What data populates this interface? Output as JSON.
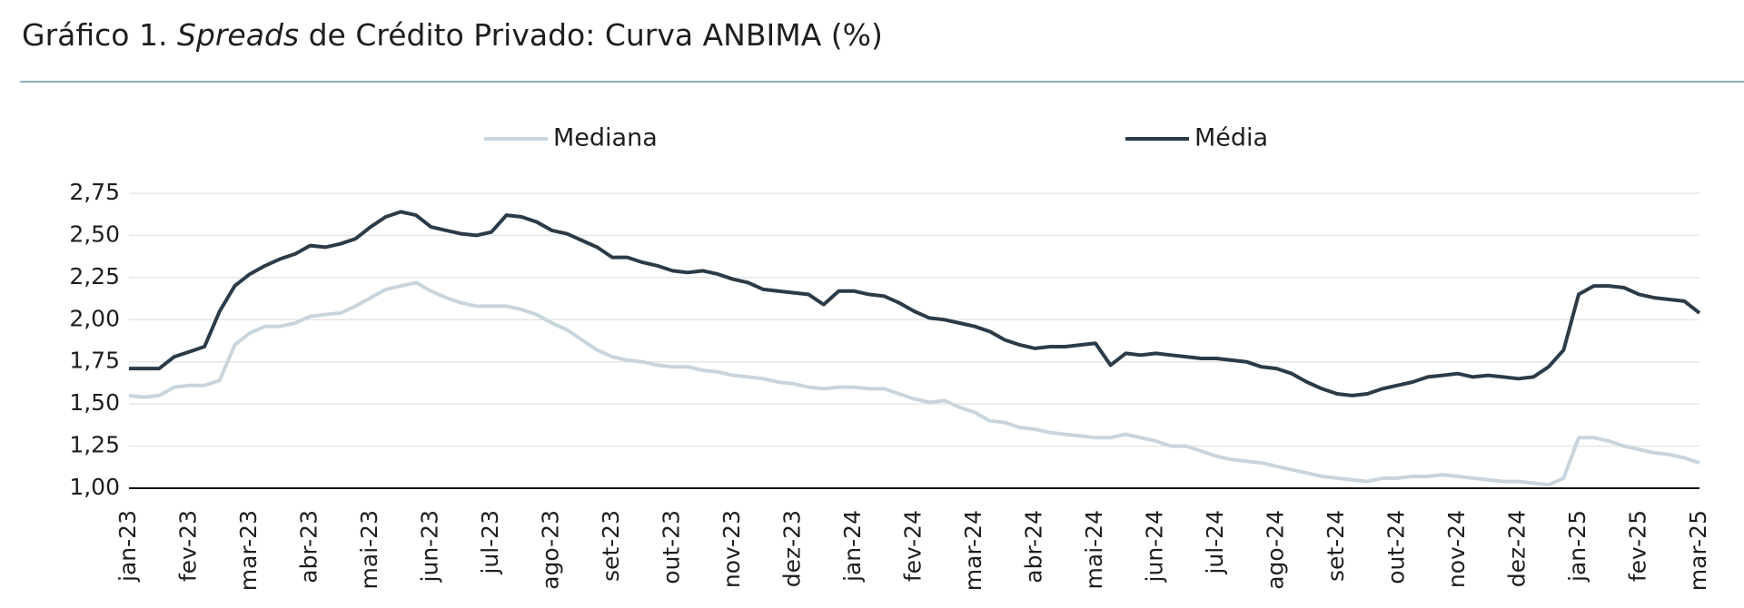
{
  "chart_data": {
    "type": "line",
    "title": [
      "Gráfico 1.",
      "Spreads",
      "de Crédito Privado: Curva ANBIMA (%)"
    ],
    "categories": [
      "jan-23",
      null,
      null,
      null,
      "fev-23",
      null,
      null,
      null,
      "mar-23",
      null,
      null,
      null,
      "abr-23",
      null,
      null,
      null,
      "mai-23",
      null,
      null,
      null,
      "jun-23",
      null,
      null,
      null,
      "jul-23",
      null,
      null,
      null,
      "ago-23",
      null,
      null,
      null,
      "set-23",
      null,
      null,
      null,
      "out-23",
      null,
      null,
      null,
      "nov-23",
      null,
      null,
      null,
      "dez-23",
      null,
      null,
      null,
      "jan-24",
      null,
      null,
      null,
      "fev-24",
      null,
      null,
      null,
      "mar-24",
      null,
      null,
      null,
      "abr-24",
      null,
      null,
      null,
      "mai-24",
      null,
      null,
      null,
      "jun-24",
      null,
      null,
      null,
      "jul-24",
      null,
      null,
      null,
      "ago-24",
      null,
      null,
      null,
      "set-24",
      null,
      null,
      null,
      "out-24",
      null,
      null,
      null,
      "nov-24",
      null,
      null,
      null,
      "dez-24",
      null,
      null,
      null,
      "jan-25",
      null,
      null,
      null,
      "fev-25",
      null,
      null,
      null,
      "mar-25"
    ],
    "series": [
      {
        "name": "Mediana",
        "color": "#c8d5de",
        "values": [
          1.55,
          1.54,
          1.55,
          1.6,
          1.61,
          1.61,
          1.64,
          1.85,
          1.92,
          1.96,
          1.96,
          1.98,
          2.02,
          2.03,
          2.04,
          2.08,
          2.13,
          2.18,
          2.2,
          2.22,
          2.17,
          2.13,
          2.1,
          2.08,
          2.08,
          2.08,
          2.06,
          2.03,
          1.98,
          1.94,
          1.88,
          1.82,
          1.78,
          1.76,
          1.75,
          1.73,
          1.72,
          1.72,
          1.7,
          1.69,
          1.67,
          1.66,
          1.65,
          1.63,
          1.62,
          1.6,
          1.59,
          1.6,
          1.6,
          1.59,
          1.59,
          1.56,
          1.53,
          1.51,
          1.52,
          1.48,
          1.45,
          1.4,
          1.39,
          1.36,
          1.35,
          1.33,
          1.32,
          1.31,
          1.3,
          1.3,
          1.32,
          1.3,
          1.28,
          1.25,
          1.25,
          1.22,
          1.19,
          1.17,
          1.16,
          1.15,
          1.13,
          1.11,
          1.09,
          1.07,
          1.06,
          1.05,
          1.04,
          1.06,
          1.06,
          1.07,
          1.07,
          1.08,
          1.07,
          1.06,
          1.05,
          1.04,
          1.04,
          1.03,
          1.02,
          1.06,
          1.3,
          1.3,
          1.28,
          1.25,
          1.23,
          1.21,
          1.2,
          1.18,
          1.15
        ]
      },
      {
        "name": "Média",
        "color": "#2b3b48",
        "values": [
          1.71,
          1.71,
          1.71,
          1.78,
          1.81,
          1.84,
          2.05,
          2.2,
          2.27,
          2.32,
          2.36,
          2.39,
          2.44,
          2.43,
          2.45,
          2.48,
          2.55,
          2.61,
          2.64,
          2.62,
          2.55,
          2.53,
          2.51,
          2.5,
          2.52,
          2.62,
          2.61,
          2.58,
          2.53,
          2.51,
          2.47,
          2.43,
          2.37,
          2.37,
          2.34,
          2.32,
          2.29,
          2.28,
          2.29,
          2.27,
          2.24,
          2.22,
          2.18,
          2.17,
          2.16,
          2.15,
          2.09,
          2.17,
          2.17,
          2.15,
          2.14,
          2.1,
          2.05,
          2.01,
          2.0,
          1.98,
          1.96,
          1.93,
          1.88,
          1.85,
          1.83,
          1.84,
          1.84,
          1.85,
          1.86,
          1.73,
          1.8,
          1.79,
          1.8,
          1.79,
          1.78,
          1.77,
          1.77,
          1.76,
          1.75,
          1.72,
          1.71,
          1.68,
          1.63,
          1.59,
          1.56,
          1.55,
          1.56,
          1.59,
          1.61,
          1.63,
          1.66,
          1.67,
          1.68,
          1.66,
          1.67,
          1.66,
          1.65,
          1.66,
          1.72,
          1.82,
          2.15,
          2.2,
          2.2,
          2.19,
          2.15,
          2.13,
          2.12,
          2.11,
          2.04
        ]
      }
    ],
    "ylim": [
      1.0,
      2.75
    ],
    "yticks": [
      {
        "value": 1.0,
        "label": "1,00"
      },
      {
        "value": 1.25,
        "label": "1,25"
      },
      {
        "value": 1.5,
        "label": "1,50"
      },
      {
        "value": 1.75,
        "label": "1,75"
      },
      {
        "value": 2.0,
        "label": "2,00"
      },
      {
        "value": 2.25,
        "label": "2,25"
      },
      {
        "value": 2.5,
        "label": "2,50"
      },
      {
        "value": 2.75,
        "label": "2,75"
      }
    ],
    "grid": true,
    "legend": "top"
  }
}
